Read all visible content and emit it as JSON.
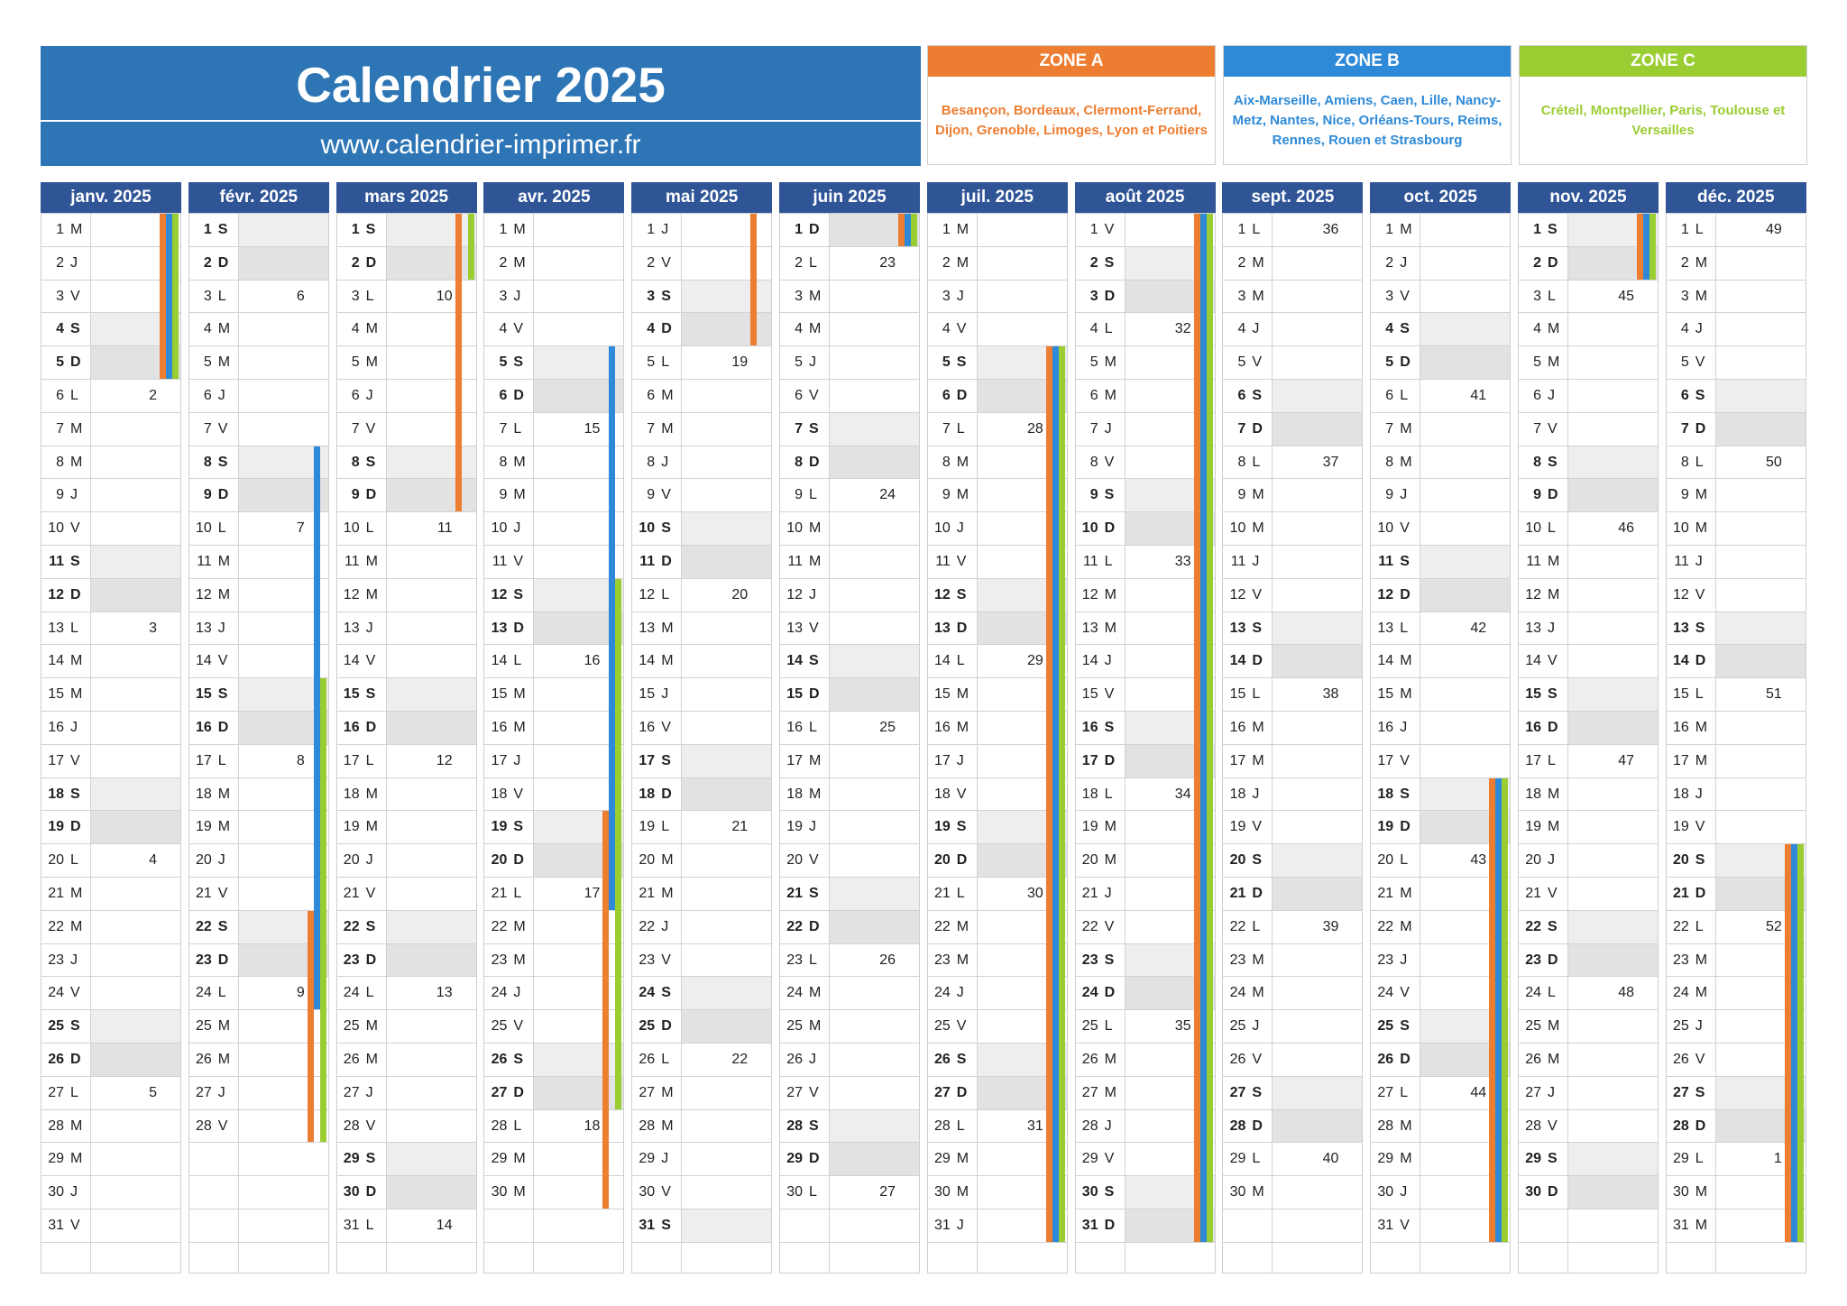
{
  "header": {
    "title": "Calendrier 2025",
    "url": "www.calendrier-imprimer.fr"
  },
  "zones": [
    {
      "key": "A",
      "label": "ZONE A",
      "color": "#ed7d31",
      "text": "Besançon, Bordeaux, Clermont-Ferrand, Dijon, Grenoble, Limoges, Lyon et Poitiers"
    },
    {
      "key": "B",
      "label": "ZONE B",
      "color": "#2e8ad8",
      "text": "Aix-Marseille, Amiens, Caen, Lille, Nancy-Metz, Nantes, Nice, Orléans-Tours, Reims, Rennes, Rouen et Strasbourg"
    },
    {
      "key": "C",
      "label": "ZONE C",
      "color": "#9acd32",
      "text": "Créteil, Montpellier, Paris, Toulouse et Versailles"
    }
  ],
  "months": [
    {
      "name": "janv. 2025",
      "days": 31,
      "firstWeekday": 2,
      "weeks": {
        "6": "2",
        "13": "3",
        "20": "4",
        "27": "5"
      },
      "holidays": [
        {
          "zone": "A",
          "from": 1,
          "to": 5
        },
        {
          "zone": "B",
          "from": 1,
          "to": 5
        },
        {
          "zone": "C",
          "from": 1,
          "to": 5
        }
      ]
    },
    {
      "name": "févr. 2025",
      "days": 28,
      "firstWeekday": 5,
      "weeks": {
        "3": "6",
        "10": "7",
        "17": "8",
        "24": "9"
      },
      "holidays": [
        {
          "zone": "B",
          "from": 8,
          "to": 24
        },
        {
          "zone": "C",
          "from": 15,
          "to": 28
        },
        {
          "zone": "A",
          "from": 22,
          "to": 28
        }
      ]
    },
    {
      "name": "mars 2025",
      "days": 31,
      "firstWeekday": 5,
      "weeks": {
        "3": "10",
        "10": "11",
        "17": "12",
        "24": "13",
        "31": "14"
      },
      "holidays": [
        {
          "zone": "A",
          "from": 1,
          "to": 9
        },
        {
          "zone": "C",
          "from": 1,
          "to": 2
        }
      ]
    },
    {
      "name": "avr. 2025",
      "days": 30,
      "firstWeekday": 1,
      "weeks": {
        "7": "15",
        "14": "16",
        "21": "17",
        "28": "18"
      },
      "holidays": [
        {
          "zone": "B",
          "from": 5,
          "to": 21
        },
        {
          "zone": "C",
          "from": 12,
          "to": 27
        },
        {
          "zone": "A",
          "from": 19,
          "to": 30
        }
      ]
    },
    {
      "name": "mai 2025",
      "days": 31,
      "firstWeekday": 3,
      "weeks": {
        "5": "19",
        "12": "20",
        "19": "21",
        "26": "22"
      },
      "holidays": [
        {
          "zone": "A",
          "from": 1,
          "to": 4
        }
      ]
    },
    {
      "name": "juin 2025",
      "days": 30,
      "firstWeekday": 6,
      "weeks": {
        "2": "23",
        "9": "24",
        "16": "25",
        "23": "26",
        "30": "27"
      },
      "holidays": [
        {
          "zone": "A",
          "from": 1,
          "to": 1
        },
        {
          "zone": "B",
          "from": 1,
          "to": 1
        },
        {
          "zone": "C",
          "from": 1,
          "to": 1
        }
      ]
    },
    {
      "name": "juil. 2025",
      "days": 31,
      "firstWeekday": 1,
      "weeks": {
        "7": "28",
        "14": "29",
        "21": "30",
        "28": "31"
      },
      "holidays": [
        {
          "zone": "A",
          "from": 5,
          "to": 31
        },
        {
          "zone": "B",
          "from": 5,
          "to": 31
        },
        {
          "zone": "C",
          "from": 5,
          "to": 31
        }
      ]
    },
    {
      "name": "août 2025",
      "days": 31,
      "firstWeekday": 4,
      "weeks": {
        "4": "32",
        "11": "33",
        "18": "34",
        "25": "35"
      },
      "holidays": [
        {
          "zone": "A",
          "from": 1,
          "to": 31
        },
        {
          "zone": "B",
          "from": 1,
          "to": 31
        },
        {
          "zone": "C",
          "from": 1,
          "to": 31
        }
      ]
    },
    {
      "name": "sept. 2025",
      "days": 30,
      "firstWeekday": 0,
      "weeks": {
        "1": "36",
        "8": "37",
        "15": "38",
        "22": "39",
        "29": "40"
      },
      "holidays": []
    },
    {
      "name": "oct. 2025",
      "days": 31,
      "firstWeekday": 2,
      "weeks": {
        "6": "41",
        "13": "42",
        "20": "43",
        "27": "44"
      },
      "holidays": [
        {
          "zone": "A",
          "from": 18,
          "to": 31
        },
        {
          "zone": "B",
          "from": 18,
          "to": 31
        },
        {
          "zone": "C",
          "from": 18,
          "to": 31
        }
      ]
    },
    {
      "name": "nov. 2025",
      "days": 30,
      "firstWeekday": 5,
      "weeks": {
        "3": "45",
        "10": "46",
        "17": "47",
        "24": "48"
      },
      "holidays": [
        {
          "zone": "A",
          "from": 1,
          "to": 2
        },
        {
          "zone": "B",
          "from": 1,
          "to": 2
        },
        {
          "zone": "C",
          "from": 1,
          "to": 2
        }
      ]
    },
    {
      "name": "déc. 2025",
      "days": 31,
      "firstWeekday": 0,
      "weeks": {
        "1": "49",
        "8": "50",
        "15": "51",
        "22": "52",
        "29": "1"
      },
      "holidays": [
        {
          "zone": "A",
          "from": 20,
          "to": 31
        },
        {
          "zone": "B",
          "from": 20,
          "to": 31
        },
        {
          "zone": "C",
          "from": 20,
          "to": 31
        }
      ]
    }
  ],
  "dayLetters": [
    "L",
    "M",
    "M",
    "J",
    "V",
    "S",
    "D"
  ]
}
